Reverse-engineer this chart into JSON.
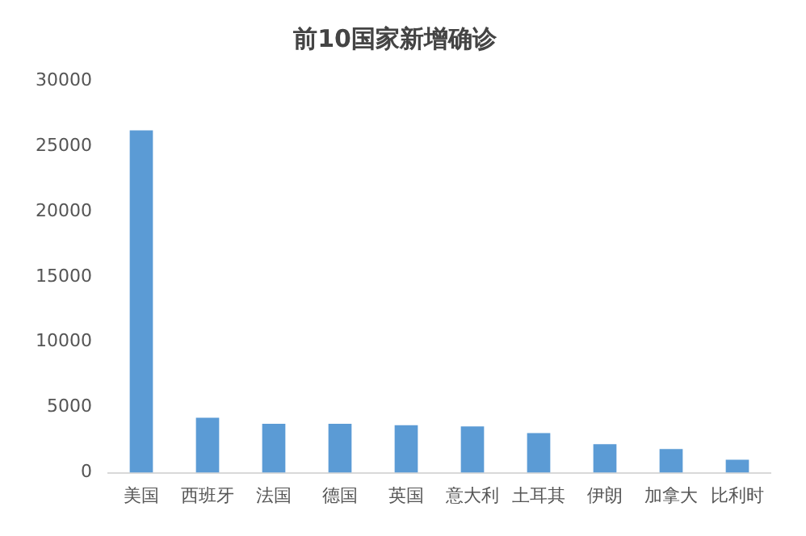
{
  "chart_data": {
    "type": "bar",
    "title": "前10国家新增确诊",
    "categories": [
      "美国",
      "西班牙",
      "法国",
      "德国",
      "英国",
      "意大利",
      "土耳其",
      "伊朗",
      "加拿大",
      "比利时"
    ],
    "values": [
      26200,
      4200,
      3750,
      3750,
      3630,
      3550,
      3030,
      2180,
      1820,
      1000
    ],
    "color": "#5b9bd5",
    "ylim": [
      0,
      30000
    ],
    "yticks": [
      0,
      5000,
      10000,
      15000,
      20000,
      25000,
      30000
    ],
    "grid": false
  }
}
